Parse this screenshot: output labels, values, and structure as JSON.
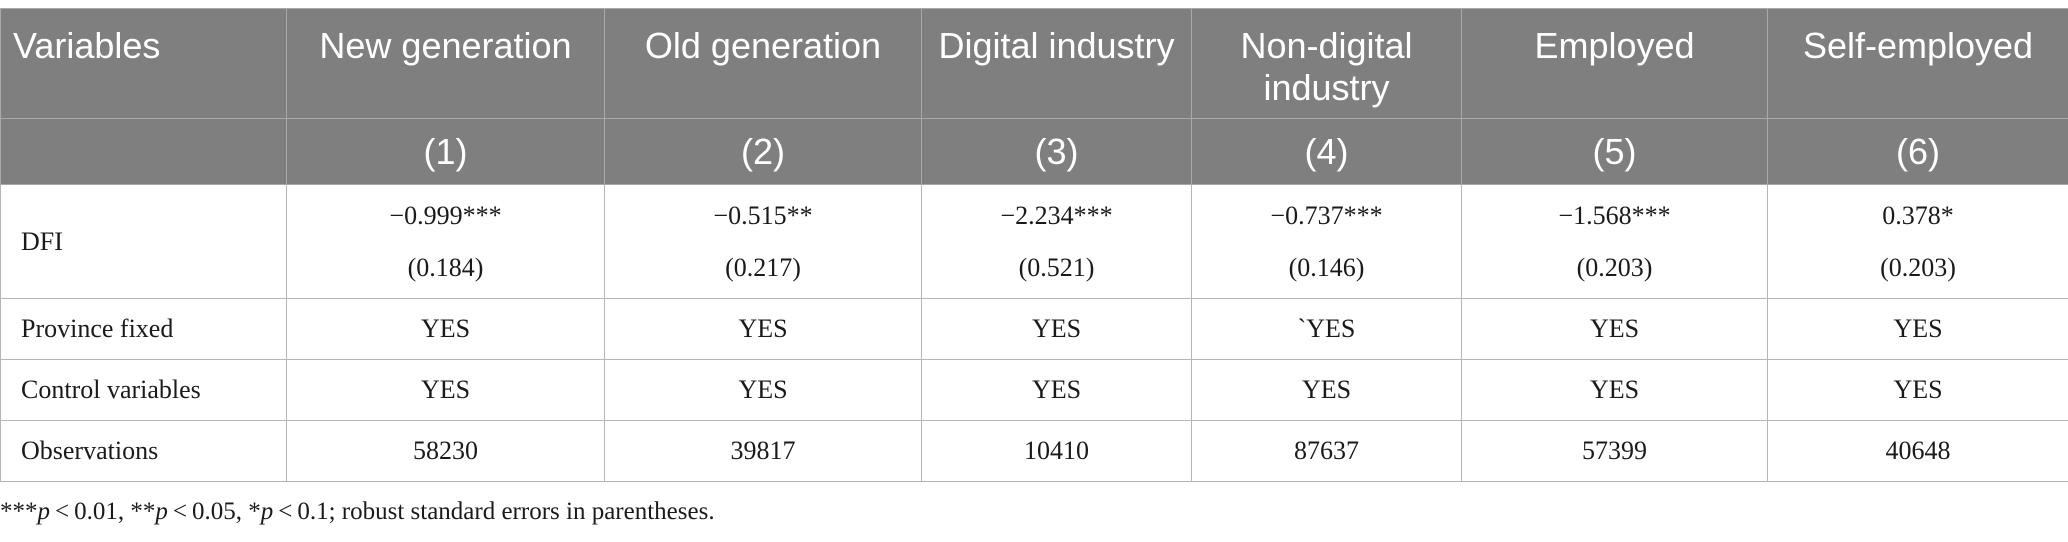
{
  "table": {
    "header": {
      "variables": "Variables",
      "columns": [
        {
          "name": "New generation",
          "num": "(1)"
        },
        {
          "name": "Old generation",
          "num": "(2)"
        },
        {
          "name": "Digital industry",
          "num": "(3)"
        },
        {
          "name": "Non-digital industry",
          "num": "(4)"
        },
        {
          "name": "Employed",
          "num": "(5)"
        },
        {
          "name": "Self-employed",
          "num": "(6)"
        }
      ]
    },
    "dfi": {
      "label": "DFI",
      "coefficients": [
        "−0.999***",
        "−0.515**",
        "−2.234***",
        "−0.737***",
        "−1.568***",
        "0.378*"
      ],
      "std_errors": [
        "(0.184)",
        "(0.217)",
        "(0.521)",
        "(0.146)",
        "(0.203)",
        "(0.203)"
      ]
    },
    "rows": [
      {
        "label": "Province fixed",
        "values": [
          "YES",
          "YES",
          "YES",
          "`YES",
          "YES",
          "YES"
        ]
      },
      {
        "label": "Control variables",
        "values": [
          "YES",
          "YES",
          "YES",
          "YES",
          "YES",
          "YES"
        ]
      },
      {
        "label": "Observations",
        "values": [
          "58230",
          "39817",
          "10410",
          "87637",
          "57399",
          "40648"
        ]
      }
    ]
  },
  "footnote": {
    "p1": "p",
    "t1": "***",
    "t2": " < 0.01, **",
    "t3": " < 0.05, *",
    "t4": " < 0.1; robust standard errors in parentheses."
  }
}
